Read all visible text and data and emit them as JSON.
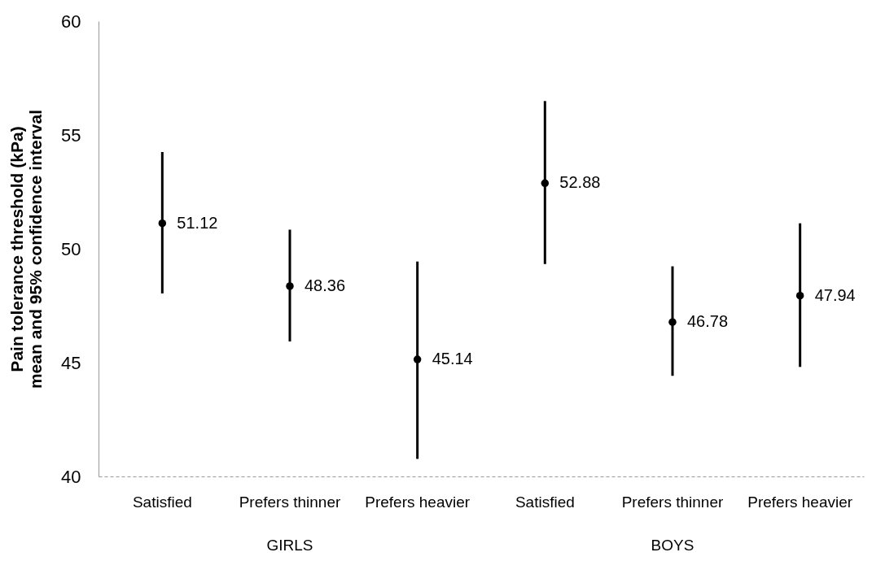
{
  "chart_data": {
    "type": "scatter",
    "ylabel": "Pain tolerance threshold (kPa) mean and 95% confidence interval",
    "categories": [
      "Satisfied",
      "Prefers thinner",
      "Prefers heavier",
      "Satisfied",
      "Prefers thinner",
      "Prefers heavier"
    ],
    "values": [
      51.12,
      48.36,
      45.14,
      52.88,
      46.78,
      47.94
    ],
    "errors": [
      [
        48.04,
        54.25
      ],
      [
        45.93,
        50.84
      ],
      [
        40.77,
        49.44
      ],
      [
        49.33,
        56.49
      ],
      [
        44.42,
        49.23
      ],
      [
        44.81,
        51.12
      ]
    ],
    "color": "#000000",
    "marker": "circle",
    "data_labels": true,
    "ylim": [
      40,
      60
    ],
    "yticks": [
      40,
      45,
      50,
      55,
      60
    ],
    "grid": false,
    "annotations": [
      "GIRLS",
      "BOYS"
    ]
  }
}
